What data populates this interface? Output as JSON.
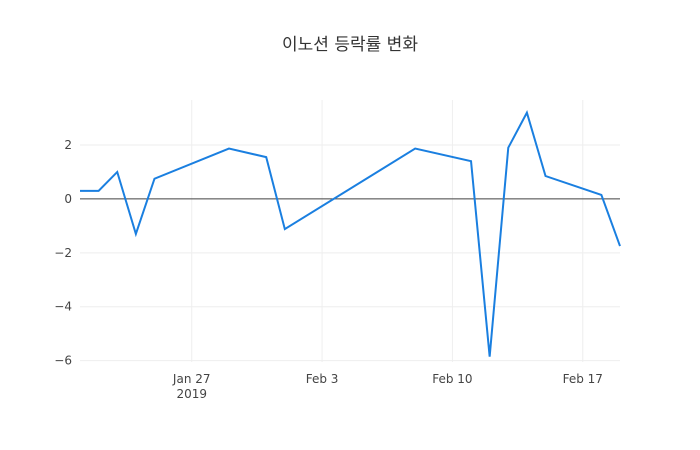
{
  "chart_data": {
    "type": "line",
    "title": "이노션 등락률 변화",
    "x": [
      "2019-01-21",
      "2019-01-22",
      "2019-01-23",
      "2019-01-24",
      "2019-01-25",
      "2019-01-29",
      "2019-01-31",
      "2019-02-01",
      "2019-02-08",
      "2019-02-11",
      "2019-02-12",
      "2019-02-13",
      "2019-02-14",
      "2019-02-15",
      "2019-02-18",
      "2019-02-19"
    ],
    "series": [
      {
        "color": "#1a7fe0",
        "values": [
          0.3,
          0.3,
          1.0,
          -1.3,
          0.75,
          1.87,
          1.55,
          -1.12,
          1.87,
          1.4,
          -5.85,
          1.9,
          3.2,
          0.85,
          0.15,
          -1.75
        ]
      }
    ],
    "xlim": [
      "2019-01-21",
      "2019-02-19"
    ],
    "xticks": [
      {
        "value": "2019-01-27",
        "label": "Jan 27\n2019"
      },
      {
        "value": "2019-02-03",
        "label": "Feb 3"
      },
      {
        "value": "2019-02-10",
        "label": "Feb 10"
      },
      {
        "value": "2019-02-17",
        "label": "Feb 17"
      }
    ],
    "ylim": [
      -6.05,
      3.67
    ],
    "yticks": [
      {
        "value": 2,
        "label": "2"
      },
      {
        "value": 0,
        "label": "0"
      },
      {
        "value": -2,
        "label": "−2"
      },
      {
        "value": -4,
        "label": "−4"
      },
      {
        "value": -6,
        "label": "−6"
      }
    ],
    "grid": true,
    "zeroline": true
  }
}
